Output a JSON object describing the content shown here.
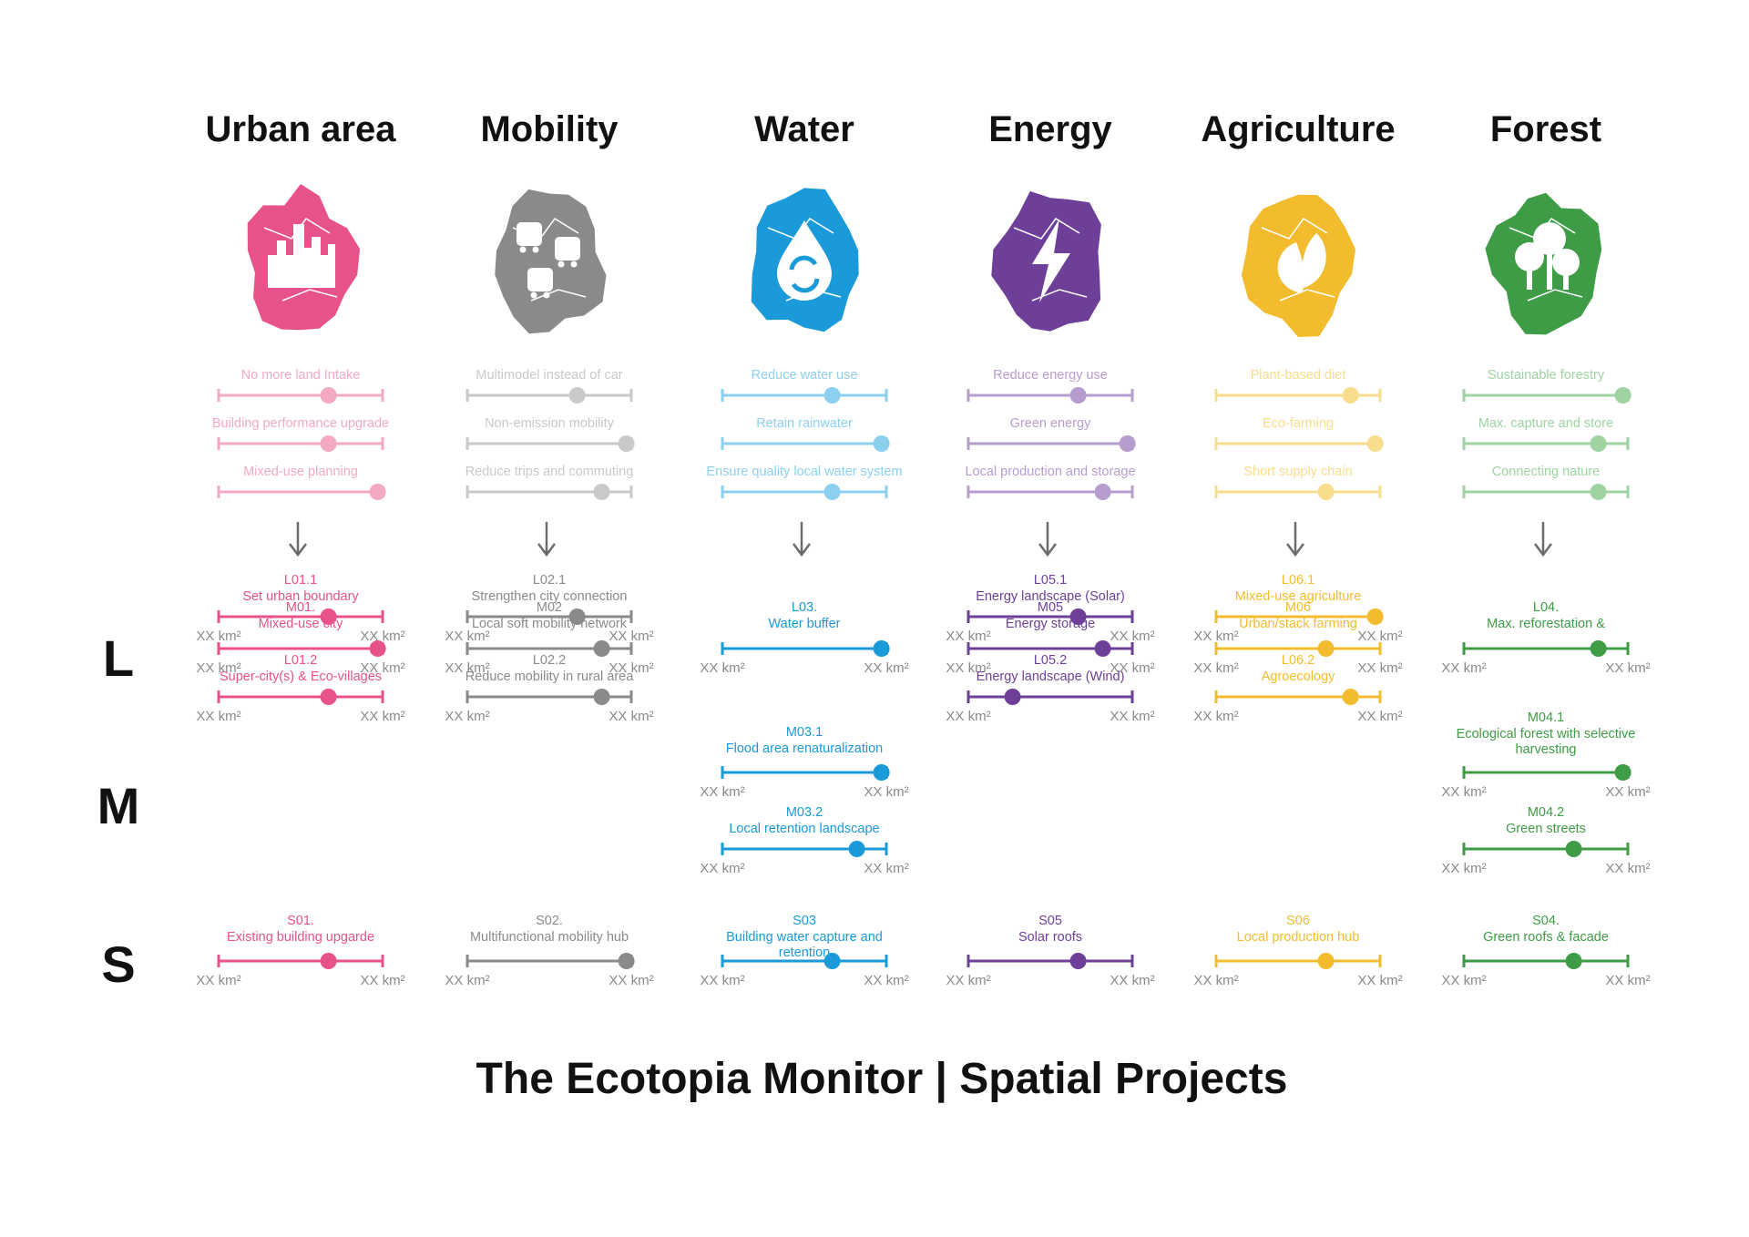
{
  "footer_title": "The Ecotopia Monitor | Spatial Projects",
  "scale_labels": [
    "L",
    "M",
    "S"
  ],
  "km_label": "XX km²",
  "arrow_color": "#6b6b6b",
  "categories": [
    {
      "id": "urban",
      "title": "Urban area",
      "icon": "city-buildings-icon",
      "color": "#e8528a",
      "light_color": "#f3a9c4",
      "goals": [
        {
          "label": "No more land Intake",
          "value": 0.67
        },
        {
          "label": "Building performance upgrade",
          "value": 0.67
        },
        {
          "label": "Mixed-use planning",
          "value": 0.97
        }
      ],
      "projects": [
        {
          "code": "L01.1",
          "title": "Set urban boundary",
          "value": 0.67,
          "slot": 0
        },
        {
          "code": "L01.2",
          "title": "Super-city(s) & Eco-villages",
          "value": 0.67,
          "slot": 1
        },
        {
          "code": "M01.",
          "title": "Mixed-use city",
          "value": 0.97,
          "slot": 2
        },
        {
          "code": "S01.",
          "title": "Existing building upgarde",
          "value": 0.67,
          "slot": 3
        }
      ]
    },
    {
      "id": "mobility",
      "title": "Mobility",
      "icon": "transit-vehicles-icon",
      "color": "#8a8a8a",
      "light_color": "#c9c9c9",
      "goals": [
        {
          "label": "Multimodel instead of car",
          "value": 0.67
        },
        {
          "label": "Non-emission mobility",
          "value": 0.97
        },
        {
          "label": "Reduce trips and commuting",
          "value": 0.82
        }
      ],
      "projects": [
        {
          "code": "L02.1",
          "title": "Strengthen city connection",
          "value": 0.67,
          "slot": 0
        },
        {
          "code": "L02.2",
          "title": "Reduce mobility in rural area",
          "value": 0.82,
          "slot": 1
        },
        {
          "code": "M02",
          "title": "Local soft mobility network",
          "value": 0.82,
          "slot": 2
        },
        {
          "code": "S02.",
          "title": "Multifunctional mobility hub",
          "value": 0.97,
          "slot": 3
        }
      ]
    },
    {
      "id": "water",
      "title": "Water",
      "icon": "water-drop-recycle-icon",
      "color": "#1a9ad9",
      "light_color": "#8cd0ef",
      "goals": [
        {
          "label": "Reduce water use",
          "value": 0.67
        },
        {
          "label": "Retain rainwater",
          "value": 0.97
        },
        {
          "label": "Ensure quality local water system",
          "value": 0.67
        }
      ],
      "projects": [
        {
          "code": "L03.",
          "title": "Water buffer",
          "value": 0.97,
          "slot": 4
        },
        {
          "code": "M03.1",
          "title": "Flood area renaturalization",
          "value": 0.97,
          "slot": 5
        },
        {
          "code": "M03.2",
          "title": "Local retention landscape",
          "value": 0.82,
          "slot": 6
        },
        {
          "code": "S03",
          "title": "Building water capture and retention",
          "value": 0.67,
          "slot": 3
        }
      ]
    },
    {
      "id": "energy",
      "title": "Energy",
      "icon": "lightning-bolt-icon",
      "color": "#6e3f99",
      "light_color": "#b79ccf",
      "goals": [
        {
          "label": "Reduce energy use",
          "value": 0.67
        },
        {
          "label": "Green energy",
          "value": 0.97
        },
        {
          "label": "Local production and storage",
          "value": 0.82
        }
      ],
      "projects": [
        {
          "code": "L05.1",
          "title": "Energy landscape (Solar)",
          "value": 0.67,
          "slot": 0
        },
        {
          "code": "L05.2",
          "title": "Energy landscape (Wind)",
          "value": 0.27,
          "slot": 1
        },
        {
          "code": "M05",
          "title": "Energy storage",
          "value": 0.82,
          "slot": 2
        },
        {
          "code": "S05",
          "title": "Solar roofs",
          "value": 0.67,
          "slot": 3
        }
      ]
    },
    {
      "id": "agriculture",
      "title": "Agriculture",
      "icon": "leaf-sprout-icon",
      "color": "#f2bc2e",
      "light_color": "#f8dd8c",
      "goals": [
        {
          "label": "Plant-based diet",
          "value": 0.82
        },
        {
          "label": "Eco-farming",
          "value": 0.97
        },
        {
          "label": "Short supply chain",
          "value": 0.67
        }
      ],
      "projects": [
        {
          "code": "L06.1",
          "title": "Mixed-use agriculture",
          "value": 0.97,
          "slot": 0
        },
        {
          "code": "L06.2",
          "title": "Agroecology",
          "value": 0.82,
          "slot": 1
        },
        {
          "code": "M06",
          "title": "Urban/stack farming",
          "value": 0.67,
          "slot": 2
        },
        {
          "code": "S06",
          "title": "Local production hub",
          "value": 0.67,
          "slot": 3
        }
      ]
    },
    {
      "id": "forest",
      "title": "Forest",
      "icon": "trees-icon",
      "color": "#3d9c45",
      "light_color": "#9fd3a2",
      "goals": [
        {
          "label": "Sustainable forestry",
          "value": 0.97
        },
        {
          "label": "Max. capture and store",
          "value": 0.82
        },
        {
          "label": "Connecting nature",
          "value": 0.82
        }
      ],
      "projects": [
        {
          "code": "L04.",
          "title": "Max. reforestation &",
          "value": 0.82,
          "slot": 4
        },
        {
          "code": "M04.1",
          "title": "Ecological forest with selective harvesting",
          "value": 0.97,
          "slot": 7
        },
        {
          "code": "M04.2",
          "title": "Green streets",
          "value": 0.67,
          "slot": 6
        },
        {
          "code": "S04.",
          "title": "Green roofs & facade",
          "value": 0.67,
          "slot": 3
        }
      ]
    }
  ]
}
